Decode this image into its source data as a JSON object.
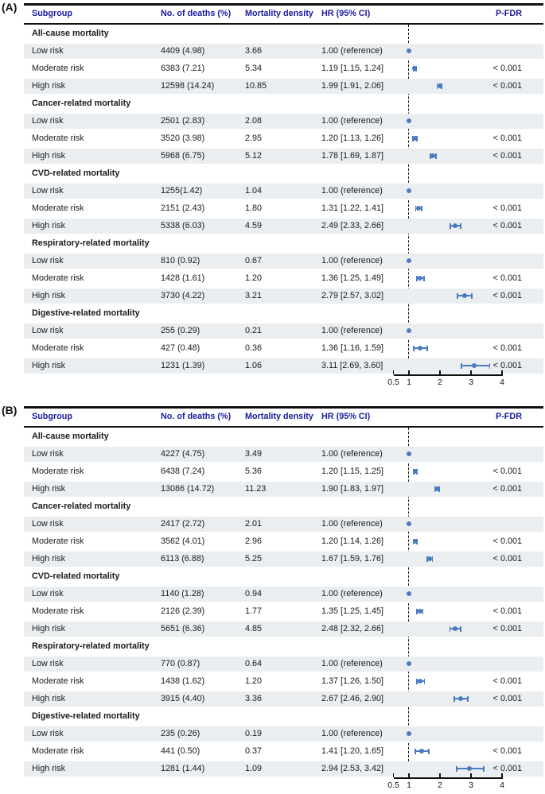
{
  "figure": {
    "colors": {
      "header_text": "#1b1b9f",
      "marker_blue": "#4a7bc1",
      "row_stripe": "#eaeef0",
      "rule_black": "#111111"
    }
  },
  "chart_data": {
    "type": "forest",
    "x_axis": {
      "scale": "linear",
      "range": [
        0.5,
        4
      ],
      "reference_line": 1,
      "tick_values": [
        0.5,
        1,
        2,
        3,
        4
      ],
      "ticks": [
        "0.5",
        "1",
        "2",
        "3",
        "4"
      ]
    },
    "columns": [
      "Subgroup",
      "No. of deaths (%)",
      "Mortality density",
      "HR (95% CI)",
      "P-FDR"
    ],
    "panels": [
      {
        "label": "(A)",
        "sections": [
          {
            "title": "All-cause mortality",
            "rows": [
              {
                "subgroup": "Low risk",
                "deaths": "4409 (4.98)",
                "density": "3.66",
                "hr_text": "1.00 (reference)",
                "hr": 1.0,
                "lo": null,
                "hi": null,
                "pfdr": ""
              },
              {
                "subgroup": "Moderate risk",
                "deaths": "6383 (7.21)",
                "density": "5.34",
                "hr_text": "1.19 [1.15, 1.24]",
                "hr": 1.19,
                "lo": 1.15,
                "hi": 1.24,
                "pfdr": "< 0.001"
              },
              {
                "subgroup": "High risk",
                "deaths": "12598 (14.24)",
                "density": "10.85",
                "hr_text": "1.99 [1.91, 2.06]",
                "hr": 1.99,
                "lo": 1.91,
                "hi": 2.06,
                "pfdr": "< 0.001"
              }
            ]
          },
          {
            "title": "Cancer-related mortality",
            "rows": [
              {
                "subgroup": "Low risk",
                "deaths": "2501 (2.83)",
                "density": "2.08",
                "hr_text": "1.00 (reference)",
                "hr": 1.0,
                "lo": null,
                "hi": null,
                "pfdr": ""
              },
              {
                "subgroup": "Moderate risk",
                "deaths": "3520 (3.98)",
                "density": "2.95",
                "hr_text": "1.20 [1.13, 1.26]",
                "hr": 1.2,
                "lo": 1.13,
                "hi": 1.26,
                "pfdr": "< 0.001"
              },
              {
                "subgroup": "High risk",
                "deaths": "5968 (6.75)",
                "density": "5.12",
                "hr_text": "1.78 [1.69, 1.87]",
                "hr": 1.78,
                "lo": 1.69,
                "hi": 1.87,
                "pfdr": "< 0.001"
              }
            ]
          },
          {
            "title": "CVD-related mortality",
            "rows": [
              {
                "subgroup": "Low risk",
                "deaths": "1255(1.42)",
                "density": "1.04",
                "hr_text": "1.00 (reference)",
                "hr": 1.0,
                "lo": null,
                "hi": null,
                "pfdr": ""
              },
              {
                "subgroup": "Moderate risk",
                "deaths": "2151 (2.43)",
                "density": "1.80",
                "hr_text": "1.31 [1.22, 1.41]",
                "hr": 1.31,
                "lo": 1.22,
                "hi": 1.41,
                "pfdr": "< 0.001"
              },
              {
                "subgroup": "High risk",
                "deaths": "5338 (6.03)",
                "density": "4.59",
                "hr_text": "2.49 [2.33, 2.66]",
                "hr": 2.49,
                "lo": 2.33,
                "hi": 2.66,
                "pfdr": "< 0.001"
              }
            ]
          },
          {
            "title": "Respiratory-related mortality",
            "rows": [
              {
                "subgroup": "Low risk",
                "deaths": "810 (0.92)",
                "density": "0.67",
                "hr_text": "1.00 (reference)",
                "hr": 1.0,
                "lo": null,
                "hi": null,
                "pfdr": ""
              },
              {
                "subgroup": "Moderate risk",
                "deaths": "1428 (1.61)",
                "density": "1.20",
                "hr_text": "1.36 [1.25, 1.49]",
                "hr": 1.36,
                "lo": 1.25,
                "hi": 1.49,
                "pfdr": "< 0.001"
              },
              {
                "subgroup": "High risk",
                "deaths": "3730 (4.22)",
                "density": "3.21",
                "hr_text": "2.79 [2.57, 3.02]",
                "hr": 2.79,
                "lo": 2.57,
                "hi": 3.02,
                "pfdr": "< 0.001"
              }
            ]
          },
          {
            "title": "Digestive-related mortality",
            "rows": [
              {
                "subgroup": "Low risk",
                "deaths": "255 (0.29)",
                "density": "0.21",
                "hr_text": "1.00 (reference)",
                "hr": 1.0,
                "lo": null,
                "hi": null,
                "pfdr": ""
              },
              {
                "subgroup": "Moderate risk",
                "deaths": "427 (0.48)",
                "density": "0.36",
                "hr_text": "1.36 [1.16, 1.59]",
                "hr": 1.36,
                "lo": 1.16,
                "hi": 1.59,
                "pfdr": "< 0.001"
              },
              {
                "subgroup": "High risk",
                "deaths": "1231 (1.39)",
                "density": "1.06",
                "hr_text": "3.11 [2.69, 3.60]",
                "hr": 3.11,
                "lo": 2.69,
                "hi": 3.6,
                "pfdr": "< 0.001"
              }
            ]
          }
        ]
      },
      {
        "label": "(B)",
        "sections": [
          {
            "title": "All-cause mortality",
            "rows": [
              {
                "subgroup": "Low risk",
                "deaths": "4227 (4.75)",
                "density": "3.49",
                "hr_text": "1.00 (reference)",
                "hr": 1.0,
                "lo": null,
                "hi": null,
                "pfdr": ""
              },
              {
                "subgroup": "Moderate risk",
                "deaths": "6438 (7.24)",
                "density": "5.36",
                "hr_text": "1.20 [1.15, 1.25]",
                "hr": 1.2,
                "lo": 1.15,
                "hi": 1.25,
                "pfdr": "< 0.001"
              },
              {
                "subgroup": "High risk",
                "deaths": "13086 (14.72)",
                "density": "11.23",
                "hr_text": "1.90 [1.83, 1.97]",
                "hr": 1.9,
                "lo": 1.83,
                "hi": 1.97,
                "pfdr": "< 0.001"
              }
            ]
          },
          {
            "title": "Cancer-related mortality",
            "rows": [
              {
                "subgroup": "Low risk",
                "deaths": "2417 (2.72)",
                "density": "2.01",
                "hr_text": "1.00 (reference)",
                "hr": 1.0,
                "lo": null,
                "hi": null,
                "pfdr": ""
              },
              {
                "subgroup": "Moderate risk",
                "deaths": "3562 (4.01)",
                "density": "2.96",
                "hr_text": "1.20 [1.14, 1.26]",
                "hr": 1.2,
                "lo": 1.14,
                "hi": 1.26,
                "pfdr": "< 0.001"
              },
              {
                "subgroup": "High risk",
                "deaths": "6113 (6.88)",
                "density": "5.25",
                "hr_text": "1.67 [1.59, 1.76]",
                "hr": 1.67,
                "lo": 1.59,
                "hi": 1.76,
                "pfdr": "< 0.001"
              }
            ]
          },
          {
            "title": "CVD-related mortality",
            "rows": [
              {
                "subgroup": "Low risk",
                "deaths": "1140 (1.28)",
                "density": "0.94",
                "hr_text": "1.00 (reference)",
                "hr": 1.0,
                "lo": null,
                "hi": null,
                "pfdr": ""
              },
              {
                "subgroup": "Moderate risk",
                "deaths": "2126 (2.39)",
                "density": "1.77",
                "hr_text": "1.35 [1.25, 1.45]",
                "hr": 1.35,
                "lo": 1.25,
                "hi": 1.45,
                "pfdr": "< 0.001"
              },
              {
                "subgroup": "High risk",
                "deaths": "5651 (6.36)",
                "density": "4.85",
                "hr_text": "2.48 [2.32, 2.66]",
                "hr": 2.48,
                "lo": 2.32,
                "hi": 2.66,
                "pfdr": "< 0.001"
              }
            ]
          },
          {
            "title": "Respiratory-related mortality",
            "rows": [
              {
                "subgroup": "Low risk",
                "deaths": "770 (0.87)",
                "density": "0.64",
                "hr_text": "1.00 (reference)",
                "hr": 1.0,
                "lo": null,
                "hi": null,
                "pfdr": ""
              },
              {
                "subgroup": "Moderate risk",
                "deaths": "1438 (1.62)",
                "density": "1.20",
                "hr_text": "1.37 [1.26, 1.50]",
                "hr": 1.37,
                "lo": 1.26,
                "hi": 1.5,
                "pfdr": "< 0.001"
              },
              {
                "subgroup": "High risk",
                "deaths": "3915 (4.40)",
                "density": "3.36",
                "hr_text": "2.67 [2.46, 2.90]",
                "hr": 2.67,
                "lo": 2.46,
                "hi": 2.9,
                "pfdr": "< 0.001"
              }
            ]
          },
          {
            "title": "Digestive-related mortality",
            "rows": [
              {
                "subgroup": "Low risk",
                "deaths": "235 (0.26)",
                "density": "0.19",
                "hr_text": "1.00 (reference)",
                "hr": 1.0,
                "lo": null,
                "hi": null,
                "pfdr": ""
              },
              {
                "subgroup": "Moderate risk",
                "deaths": "441 (0.50)",
                "density": "0.37",
                "hr_text": "1.41 [1.20, 1.65]",
                "hr": 1.41,
                "lo": 1.2,
                "hi": 1.65,
                "pfdr": "< 0.001"
              },
              {
                "subgroup": "High risk",
                "deaths": "1281 (1.44)",
                "density": "1.09",
                "hr_text": "2.94 [2.53, 3.42]",
                "hr": 2.94,
                "lo": 2.53,
                "hi": 3.42,
                "pfdr": "< 0.001"
              }
            ]
          }
        ]
      }
    ]
  }
}
